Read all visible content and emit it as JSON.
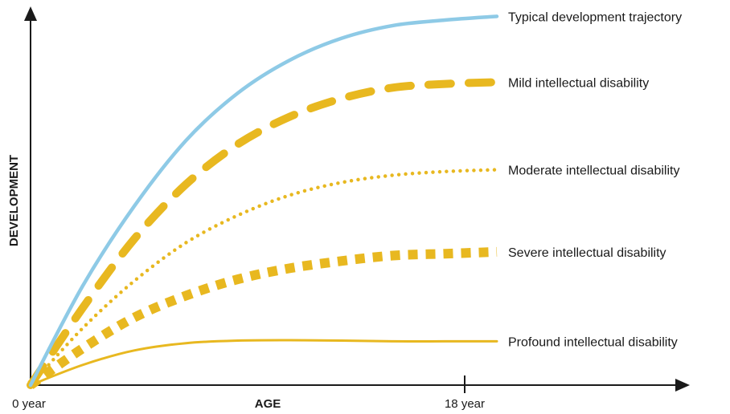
{
  "chart_data": {
    "type": "line",
    "xlabel": "AGE",
    "ylabel": "DEVELOPMENT",
    "x_ticks": [
      "0 year",
      "18 year"
    ],
    "xlim": [
      0,
      18
    ],
    "ylim": [
      0,
      100
    ],
    "grid": false,
    "series": [
      {
        "name": "Typical development trajectory",
        "color": "#8ecae6",
        "style": "solid-thick",
        "x": [
          0,
          2,
          4,
          6,
          8,
          10,
          12,
          14,
          16,
          18
        ],
        "values": [
          0,
          27,
          49,
          67,
          80,
          89,
          95,
          98.5,
          100,
          101
        ]
      },
      {
        "name": "Mild intellectual disability",
        "color": "#e8b820",
        "style": "long-dash",
        "x": [
          0,
          2,
          4,
          6,
          8,
          10,
          12,
          14,
          16,
          18
        ],
        "values": [
          0,
          21,
          40,
          55,
          66,
          73.5,
          78.5,
          81.5,
          82.5,
          83
        ]
      },
      {
        "name": "Moderate intellectual disability",
        "color": "#e8b820",
        "style": "dotted",
        "x": [
          0,
          2,
          4,
          6,
          8,
          10,
          12,
          14,
          16,
          18
        ],
        "values": [
          0,
          15.5,
          28.5,
          39,
          46.5,
          52,
          55.5,
          57.5,
          58.5,
          59
        ]
      },
      {
        "name": "Severe intellectual disability",
        "color": "#e8b820",
        "style": "short-dash-thick",
        "x": [
          0,
          2,
          4,
          6,
          8,
          10,
          12,
          14,
          16,
          18
        ],
        "values": [
          0,
          10,
          18.5,
          24.5,
          29,
          32,
          34,
          35.5,
          36,
          36.5
        ]
      },
      {
        "name": "Profound intellectual disability",
        "color": "#e8b820",
        "style": "solid-thin",
        "x": [
          0,
          2,
          4,
          6,
          8,
          10,
          12,
          14,
          16,
          18
        ],
        "values": [
          0,
          5.5,
          9.5,
          11.5,
          12.2,
          12.3,
          12.2,
          12,
          12,
          12
        ]
      }
    ]
  }
}
